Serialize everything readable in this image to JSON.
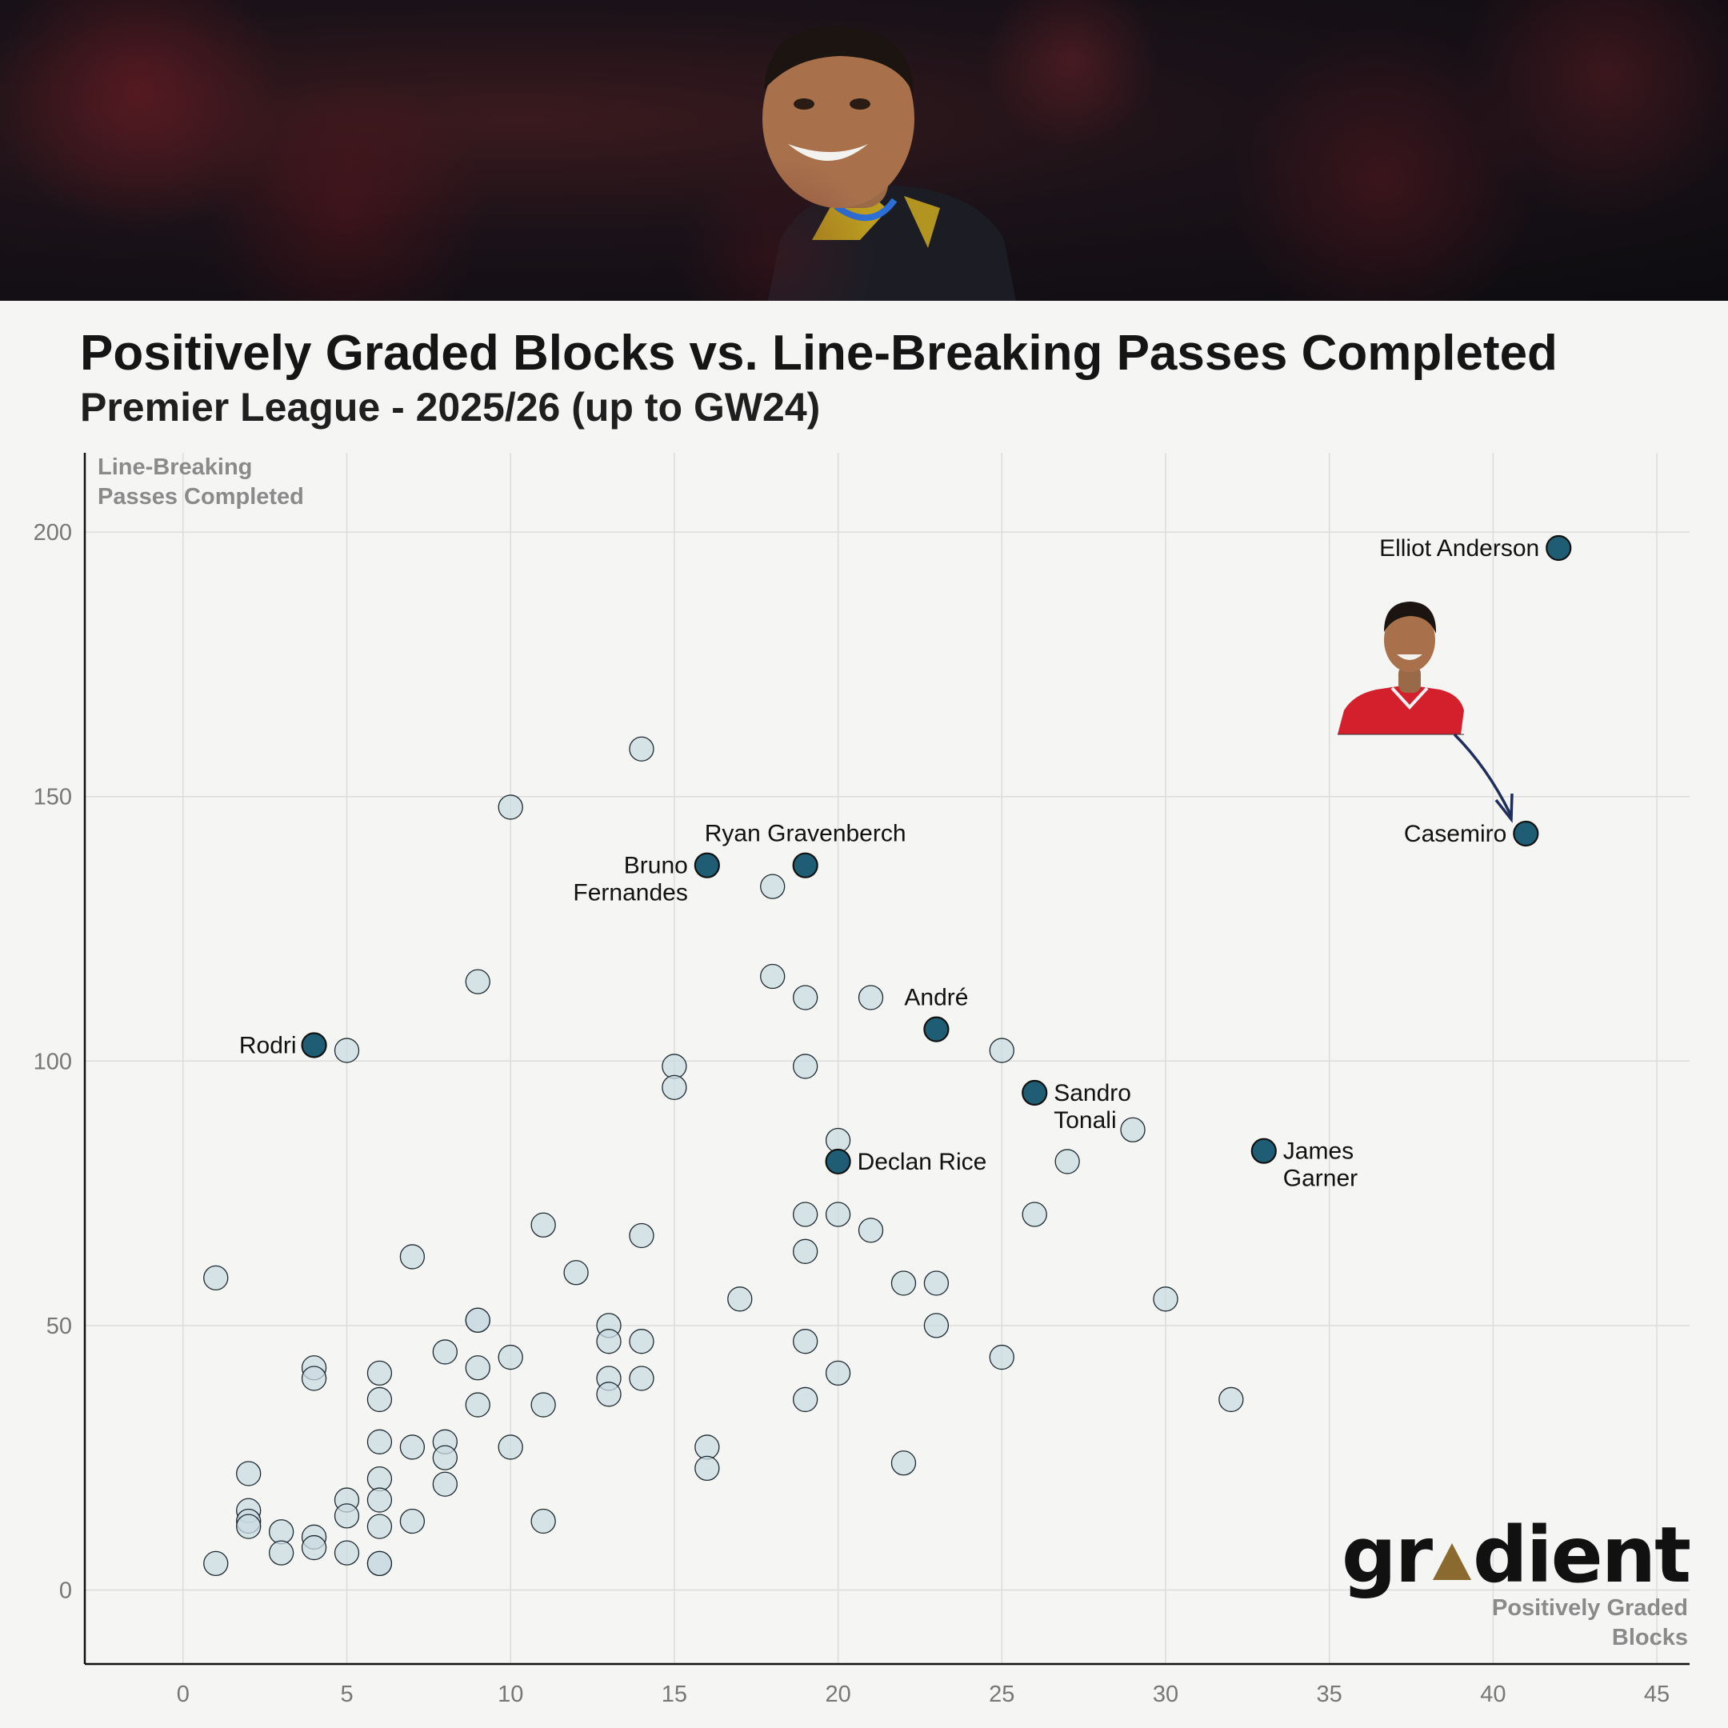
{
  "header": {
    "title": "Positively Graded Blocks vs. Line-Breaking Passes Completed",
    "subtitle": "Premier League - 2025/26 (up to GW24)"
  },
  "brand": {
    "logo_pre": "gr",
    "logo_post": "dient"
  },
  "colors": {
    "highlight": "#1f5d74",
    "background_point": "#c9dbe2",
    "point_stroke": "#1e2a30",
    "arrow": "#1f2e5a",
    "grid": "#dcdcdc",
    "accent": "#8a6a2e"
  },
  "chart_data": {
    "type": "scatter",
    "title": "Positively Graded Blocks vs. Line-Breaking Passes Completed",
    "subtitle": "Premier League - 2025/26 (up to GW24)",
    "xlabel": "Positively Graded Blocks",
    "ylabel": "Line-Breaking Passes Completed",
    "xlim": [
      -3,
      46
    ],
    "ylim": [
      -14,
      215
    ],
    "xticks": [
      0,
      5,
      10,
      15,
      20,
      25,
      30,
      35,
      40,
      45
    ],
    "yticks": [
      0,
      50,
      100,
      150,
      200
    ],
    "grid": true,
    "highlighted": [
      {
        "name": "Elliot Anderson",
        "x": 42,
        "y": 197
      },
      {
        "name": "Casemiro",
        "x": 41,
        "y": 143
      },
      {
        "name": "Ryan Gravenberch",
        "x": 19,
        "y": 137
      },
      {
        "name": "Bruno Fernandes",
        "x": 16,
        "y": 137
      },
      {
        "name": "André",
        "x": 23,
        "y": 106
      },
      {
        "name": "Rodri",
        "x": 4,
        "y": 103
      },
      {
        "name": "Sandro Tonali",
        "x": 26,
        "y": 94
      },
      {
        "name": "James Garner",
        "x": 33,
        "y": 83
      },
      {
        "name": "Declan Rice",
        "x": 20,
        "y": 81
      }
    ],
    "others": [
      [
        14,
        159
      ],
      [
        10,
        148
      ],
      [
        18,
        133
      ],
      [
        9,
        115
      ],
      [
        18,
        116
      ],
      [
        19,
        112
      ],
      [
        21,
        112
      ],
      [
        5,
        102
      ],
      [
        25,
        102
      ],
      [
        15,
        99
      ],
      [
        19,
        99
      ],
      [
        15,
        95
      ],
      [
        20,
        85
      ],
      [
        29,
        87
      ],
      [
        27,
        81
      ],
      [
        19,
        71
      ],
      [
        20,
        71
      ],
      [
        26,
        71
      ],
      [
        11,
        69
      ],
      [
        21,
        68
      ],
      [
        14,
        67
      ],
      [
        19,
        64
      ],
      [
        7,
        63
      ],
      [
        1,
        59
      ],
      [
        12,
        60
      ],
      [
        22,
        58
      ],
      [
        23,
        58
      ],
      [
        17,
        55
      ],
      [
        30,
        55
      ],
      [
        9,
        51
      ],
      [
        9,
        51
      ],
      [
        13,
        50
      ],
      [
        23,
        50
      ],
      [
        13,
        47
      ],
      [
        14,
        47
      ],
      [
        19,
        47
      ],
      [
        8,
        45
      ],
      [
        10,
        44
      ],
      [
        25,
        44
      ],
      [
        4,
        42
      ],
      [
        9,
        42
      ],
      [
        6,
        41
      ],
      [
        20,
        41
      ],
      [
        4,
        40
      ],
      [
        13,
        40
      ],
      [
        14,
        40
      ],
      [
        6,
        36
      ],
      [
        13,
        37
      ],
      [
        19,
        36
      ],
      [
        32,
        36
      ],
      [
        9,
        35
      ],
      [
        11,
        35
      ],
      [
        6,
        28
      ],
      [
        8,
        28
      ],
      [
        7,
        27
      ],
      [
        10,
        27
      ],
      [
        16,
        27
      ],
      [
        8,
        25
      ],
      [
        22,
        24
      ],
      [
        16,
        23
      ],
      [
        2,
        22
      ],
      [
        6,
        21
      ],
      [
        8,
        20
      ],
      [
        5,
        17
      ],
      [
        6,
        17
      ],
      [
        2,
        15
      ],
      [
        5,
        14
      ],
      [
        2,
        13
      ],
      [
        2,
        12
      ],
      [
        7,
        13
      ],
      [
        11,
        13
      ],
      [
        6,
        12
      ],
      [
        3,
        11
      ],
      [
        4,
        10
      ],
      [
        4,
        8
      ],
      [
        3,
        7
      ],
      [
        5,
        7
      ],
      [
        1,
        5
      ],
      [
        6,
        5
      ],
      [
        6,
        5
      ]
    ]
  }
}
